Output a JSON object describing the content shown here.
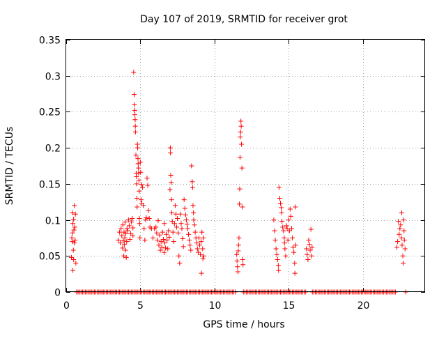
{
  "chart_data": {
    "type": "scatter",
    "title": "Day 107 of 2019, SRMTID for receiver grot",
    "xlabel": "GPS time / hours",
    "ylabel": "SRMTID / TECUs",
    "xlim": [
      0,
      24.2
    ],
    "ylim": [
      0,
      0.35
    ],
    "xticks": [
      0,
      5,
      10,
      15,
      20
    ],
    "xtick_labels": [
      "0",
      "5",
      "10",
      "15",
      "20"
    ],
    "yticks": [
      0,
      0.05,
      0.1,
      0.15,
      0.2,
      0.25,
      0.3,
      0.35
    ],
    "ytick_labels": [
      "0",
      "0.05",
      "0.1",
      "0.15",
      "0.2",
      "0.25",
      "0.3",
      "0.35"
    ],
    "grid": true,
    "marker": "+",
    "color": "#ff0000",
    "series": [
      {
        "name": "SRMTID",
        "points": [
          [
            0.35,
            0.048
          ],
          [
            0.38,
            0.075
          ],
          [
            0.4,
            0.07
          ],
          [
            0.42,
            0.082
          ],
          [
            0.45,
            0.095
          ],
          [
            0.45,
            0.03
          ],
          [
            0.48,
            0.058
          ],
          [
            0.5,
            0.101
          ],
          [
            0.52,
            0.086
          ],
          [
            0.55,
            0.068
          ],
          [
            0.55,
            0.12
          ],
          [
            0.58,
            0.09
          ],
          [
            0.6,
            0.072
          ],
          [
            0.62,
            0.108
          ],
          [
            0.65,
            0.04
          ],
          [
            0.5,
            0.045
          ],
          [
            0.42,
            0.11
          ],
          [
            3.5,
            0.072
          ],
          [
            3.6,
            0.083
          ],
          [
            3.65,
            0.068
          ],
          [
            3.7,
            0.088
          ],
          [
            3.75,
            0.078
          ],
          [
            3.8,
            0.061
          ],
          [
            3.82,
            0.093
          ],
          [
            3.85,
            0.071
          ],
          [
            3.88,
            0.05
          ],
          [
            3.9,
            0.083
          ],
          [
            3.92,
            0.066
          ],
          [
            3.95,
            0.075
          ],
          [
            3.97,
            0.097
          ],
          [
            4.0,
            0.058
          ],
          [
            4.02,
            0.081
          ],
          [
            4.05,
            0.048
          ],
          [
            4.08,
            0.07
          ],
          [
            4.1,
            0.088
          ],
          [
            4.15,
            0.085
          ],
          [
            4.2,
            0.1
          ],
          [
            4.25,
            0.092
          ],
          [
            4.3,
            0.073
          ],
          [
            4.35,
            0.081
          ],
          [
            4.4,
            0.097
          ],
          [
            4.45,
            0.102
          ],
          [
            4.5,
            0.089
          ],
          [
            4.5,
            0.078
          ],
          [
            4.55,
            0.305
          ],
          [
            4.58,
            0.274
          ],
          [
            4.6,
            0.26
          ],
          [
            4.62,
            0.252
          ],
          [
            4.63,
            0.246
          ],
          [
            4.65,
            0.239
          ],
          [
            4.66,
            0.23
          ],
          [
            4.67,
            0.222
          ],
          [
            4.7,
            0.19
          ],
          [
            4.72,
            0.165
          ],
          [
            4.74,
            0.16
          ],
          [
            4.75,
            0.15
          ],
          [
            4.77,
            0.13
          ],
          [
            4.78,
            0.118
          ],
          [
            4.8,
            0.205
          ],
          [
            4.82,
            0.2
          ],
          [
            4.84,
            0.185
          ],
          [
            4.85,
            0.178
          ],
          [
            4.87,
            0.172
          ],
          [
            4.88,
            0.165
          ],
          [
            4.9,
            0.155
          ],
          [
            4.92,
            0.14
          ],
          [
            4.93,
            0.102
          ],
          [
            4.95,
            0.095
          ],
          [
            4.97,
            0.075
          ],
          [
            5.0,
            0.18
          ],
          [
            5.02,
            0.166
          ],
          [
            5.05,
            0.128
          ],
          [
            5.08,
            0.149
          ],
          [
            5.1,
            0.123
          ],
          [
            5.15,
            0.145
          ],
          [
            5.2,
            0.12
          ],
          [
            5.25,
            0.088
          ],
          [
            5.3,
            0.072
          ],
          [
            5.35,
            0.1
          ],
          [
            5.4,
            0.103
          ],
          [
            5.45,
            0.158
          ],
          [
            5.5,
            0.148
          ],
          [
            5.55,
            0.113
          ],
          [
            5.6,
            0.102
          ],
          [
            5.65,
            0.09
          ],
          [
            5.75,
            0.088
          ],
          [
            5.85,
            0.075
          ],
          [
            5.95,
            0.088
          ],
          [
            6.05,
            0.09
          ],
          [
            6.1,
            0.082
          ],
          [
            6.15,
            0.072
          ],
          [
            6.2,
            0.099
          ],
          [
            6.25,
            0.065
          ],
          [
            6.3,
            0.079
          ],
          [
            6.35,
            0.058
          ],
          [
            6.4,
            0.07
          ],
          [
            6.45,
            0.062
          ],
          [
            6.5,
            0.083
          ],
          [
            6.55,
            0.073
          ],
          [
            6.6,
            0.055
          ],
          [
            6.62,
            0.095
          ],
          [
            6.65,
            0.068
          ],
          [
            6.7,
            0.061
          ],
          [
            6.75,
            0.08
          ],
          [
            6.8,
            0.072
          ],
          [
            6.85,
            0.06
          ],
          [
            6.9,
            0.085
          ],
          [
            6.95,
            0.076
          ],
          [
            7.0,
            0.142
          ],
          [
            7.02,
            0.2
          ],
          [
            7.03,
            0.193
          ],
          [
            7.05,
            0.162
          ],
          [
            7.08,
            0.152
          ],
          [
            7.1,
            0.128
          ],
          [
            7.12,
            0.11
          ],
          [
            7.15,
            0.098
          ],
          [
            7.2,
            0.083
          ],
          [
            7.25,
            0.07
          ],
          [
            7.3,
            0.095
          ],
          [
            7.35,
            0.12
          ],
          [
            7.4,
            0.108
          ],
          [
            7.45,
            0.09
          ],
          [
            7.5,
            0.102
          ],
          [
            7.55,
            0.082
          ],
          [
            7.6,
            0.05
          ],
          [
            7.65,
            0.04
          ],
          [
            7.7,
            0.108
          ],
          [
            7.75,
            0.095
          ],
          [
            7.8,
            0.088
          ],
          [
            7.85,
            0.074
          ],
          [
            7.9,
            0.063
          ],
          [
            7.95,
            0.128
          ],
          [
            8.0,
            0.116
          ],
          [
            8.05,
            0.107
          ],
          [
            8.1,
            0.1
          ],
          [
            8.15,
            0.094
          ],
          [
            8.2,
            0.088
          ],
          [
            8.25,
            0.08
          ],
          [
            8.3,
            0.072
          ],
          [
            8.35,
            0.065
          ],
          [
            8.4,
            0.058
          ],
          [
            8.45,
            0.175
          ],
          [
            8.5,
            0.153
          ],
          [
            8.52,
            0.145
          ],
          [
            8.55,
            0.12
          ],
          [
            8.58,
            0.11
          ],
          [
            8.6,
            0.1
          ],
          [
            8.65,
            0.093
          ],
          [
            8.7,
            0.083
          ],
          [
            8.75,
            0.075
          ],
          [
            8.8,
            0.068
          ],
          [
            8.85,
            0.06
          ],
          [
            8.9,
            0.055
          ],
          [
            8.95,
            0.075
          ],
          [
            9.0,
            0.065
          ],
          [
            9.05,
            0.052
          ],
          [
            9.1,
            0.07
          ],
          [
            9.12,
            0.026
          ],
          [
            9.15,
            0.083
          ],
          [
            9.2,
            0.06
          ],
          [
            9.22,
            0.046
          ],
          [
            9.25,
            0.075
          ],
          [
            9.28,
            0.05
          ],
          [
            11.5,
            0.052
          ],
          [
            11.52,
            0.043
          ],
          [
            11.55,
            0.035
          ],
          [
            11.58,
            0.028
          ],
          [
            11.6,
            0.057
          ],
          [
            11.62,
            0.065
          ],
          [
            11.65,
            0.075
          ],
          [
            11.68,
            0.122
          ],
          [
            11.7,
            0.143
          ],
          [
            11.72,
            0.187
          ],
          [
            11.74,
            0.215
          ],
          [
            11.76,
            0.222
          ],
          [
            11.78,
            0.237
          ],
          [
            11.8,
            0.23
          ],
          [
            11.82,
            0.205
          ],
          [
            11.85,
            0.172
          ],
          [
            11.88,
            0.118
          ],
          [
            11.9,
            0.045
          ],
          [
            11.92,
            0.038
          ],
          [
            14.0,
            0.1
          ],
          [
            14.05,
            0.085
          ],
          [
            14.1,
            0.072
          ],
          [
            14.15,
            0.06
          ],
          [
            14.2,
            0.052
          ],
          [
            14.25,
            0.045
          ],
          [
            14.3,
            0.037
          ],
          [
            14.32,
            0.03
          ],
          [
            14.35,
            0.145
          ],
          [
            14.4,
            0.13
          ],
          [
            14.45,
            0.123
          ],
          [
            14.5,
            0.117
          ],
          [
            14.52,
            0.11
          ],
          [
            14.55,
            0.098
          ],
          [
            14.6,
            0.09
          ],
          [
            14.65,
            0.085
          ],
          [
            14.7,
            0.075
          ],
          [
            14.72,
            0.068
          ],
          [
            14.75,
            0.06
          ],
          [
            14.8,
            0.05
          ],
          [
            14.85,
            0.092
          ],
          [
            14.9,
            0.088
          ],
          [
            14.95,
            0.072
          ],
          [
            15.0,
            0.1
          ],
          [
            15.05,
            0.085
          ],
          [
            15.1,
            0.115
          ],
          [
            15.15,
            0.105
          ],
          [
            15.2,
            0.088
          ],
          [
            15.25,
            0.075
          ],
          [
            15.3,
            0.062
          ],
          [
            15.35,
            0.055
          ],
          [
            15.4,
            0.04
          ],
          [
            15.42,
            0.026
          ],
          [
            15.45,
            0.118
          ],
          [
            15.48,
            0.065
          ],
          [
            16.2,
            0.06
          ],
          [
            16.25,
            0.052
          ],
          [
            16.3,
            0.045
          ],
          [
            16.35,
            0.072
          ],
          [
            16.4,
            0.066
          ],
          [
            16.45,
            0.058
          ],
          [
            16.5,
            0.087
          ],
          [
            16.55,
            0.05
          ],
          [
            16.58,
            0.062
          ],
          [
            22.3,
            0.062
          ],
          [
            22.35,
            0.07
          ],
          [
            22.4,
            0.098
          ],
          [
            22.45,
            0.08
          ],
          [
            22.5,
            0.088
          ],
          [
            22.55,
            0.093
          ],
          [
            22.6,
            0.075
          ],
          [
            22.62,
            0.11
          ],
          [
            22.65,
            0.065
          ],
          [
            22.7,
            0.05
          ],
          [
            22.72,
            0.04
          ],
          [
            22.75,
            0.1
          ],
          [
            22.78,
            0.085
          ],
          [
            22.8,
            0.072
          ],
          [
            22.85,
            0.06
          ]
        ],
        "zero_ranges": [
          [
            0.7,
            3.4
          ],
          [
            3.4,
            9.3
          ],
          [
            9.4,
            11.45
          ],
          [
            11.95,
            16.15
          ],
          [
            16.6,
            22.25
          ],
          [
            22.9,
            22.95
          ]
        ]
      }
    ]
  }
}
